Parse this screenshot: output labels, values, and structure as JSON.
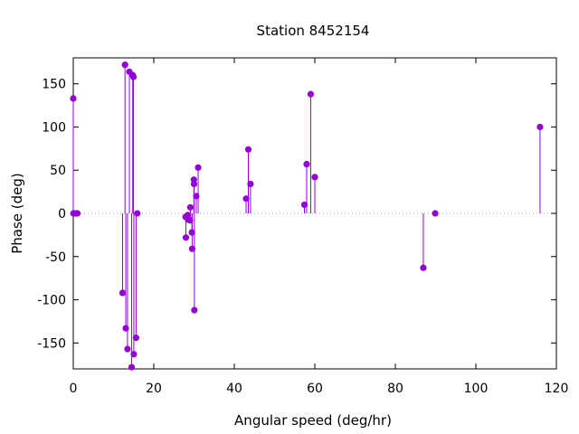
{
  "chart_data": {
    "type": "scatter",
    "title": "Station 8452154",
    "xlabel": "Angular speed (deg/hr)",
    "ylabel": "Phase (deg)",
    "xlim": [
      0,
      120
    ],
    "ylim": [
      -180,
      180
    ],
    "xticks": [
      0,
      20,
      40,
      60,
      80,
      100,
      120
    ],
    "yticks": [
      -150,
      -100,
      -50,
      0,
      50,
      100,
      150
    ],
    "grid": false,
    "legend": "none",
    "style": "impulses-with-points",
    "color": "#9400d3",
    "zero_line": "dotted",
    "series": [
      {
        "x": [
          0.0,
          0.04,
          0.08,
          0.54,
          1.02,
          12.25,
          12.85,
          13.04,
          13.47,
          13.94,
          14.5,
          14.76,
          14.96,
          15.04,
          15.59,
          15.89,
          27.9,
          27.97,
          28.44,
          28.51,
          28.98,
          29.08,
          29.46,
          29.53,
          29.96,
          30.0,
          30.08,
          30.54,
          31.02,
          42.93,
          43.48,
          44.03,
          57.42,
          57.97,
          58.98,
          60.0,
          86.95,
          89.9,
          115.94
        ],
        "y": [
          133,
          0,
          0,
          0,
          0,
          -92,
          172,
          -133,
          -157,
          164,
          -178,
          160,
          158,
          -163,
          -144,
          0,
          -4,
          -28,
          -2,
          -7,
          -8,
          7,
          -22,
          -41,
          39,
          34,
          -112,
          20,
          53,
          17,
          74,
          34,
          10,
          57,
          138,
          42,
          -63,
          0,
          100
        ]
      }
    ]
  }
}
